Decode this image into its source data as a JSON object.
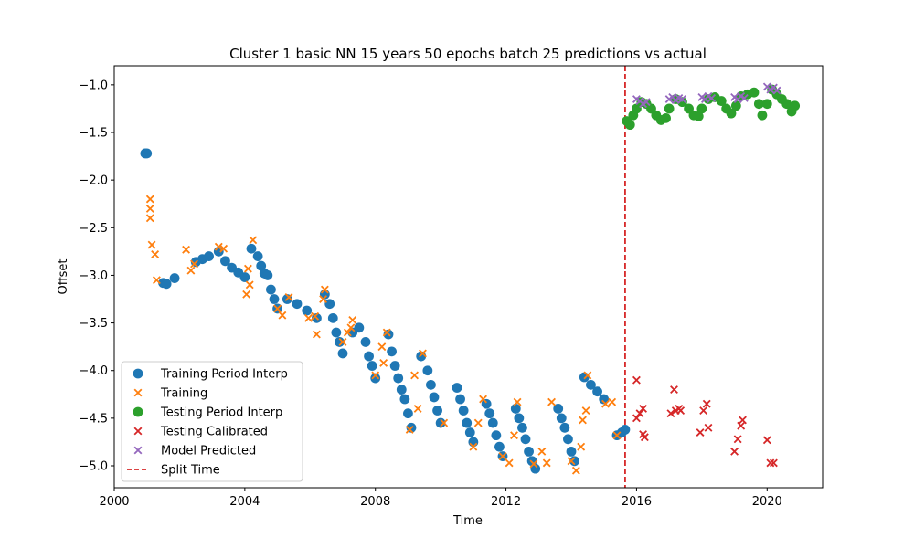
{
  "chart_data": {
    "type": "scatter",
    "title": "Cluster 1 basic NN 15 years 50 epochs batch 25 predictions vs actual",
    "xlabel": "Time",
    "ylabel": "Offset",
    "xlim": [
      2000.0,
      2021.7
    ],
    "ylim": [
      -5.23,
      -0.8
    ],
    "x_ticks": [
      2000,
      2004,
      2008,
      2012,
      2016,
      2020
    ],
    "x_tick_labels": [
      "2000",
      "2004",
      "2008",
      "2012",
      "2016",
      "2020"
    ],
    "y_ticks": [
      -1.0,
      -1.5,
      -2.0,
      -2.5,
      -3.0,
      -3.5,
      -4.0,
      -4.5,
      -5.0
    ],
    "y_tick_labels": [
      "−1.0",
      "−1.5",
      "−2.0",
      "−2.5",
      "−3.0",
      "−3.5",
      "−4.0",
      "−4.5",
      "−5.0"
    ],
    "grid": false,
    "legend_position": "lower-left",
    "split_time": {
      "name": "Split Time",
      "x": 2015.65,
      "color": "#d62728",
      "style": "dashed"
    },
    "series": [
      {
        "name": "Training Period Interp",
        "marker": "circle",
        "color": "#1f77b4",
        "points": [
          [
            2000.95,
            -1.72
          ],
          [
            2001.0,
            -1.72
          ],
          [
            2001.5,
            -3.08
          ],
          [
            2001.6,
            -3.09
          ],
          [
            2001.85,
            -3.03
          ],
          [
            2002.5,
            -2.86
          ],
          [
            2002.7,
            -2.83
          ],
          [
            2002.9,
            -2.8
          ],
          [
            2003.2,
            -2.75
          ],
          [
            2003.4,
            -2.85
          ],
          [
            2003.6,
            -2.92
          ],
          [
            2003.8,
            -2.97
          ],
          [
            2004.0,
            -3.02
          ],
          [
            2004.2,
            -2.72
          ],
          [
            2004.4,
            -2.8
          ],
          [
            2004.5,
            -2.9
          ],
          [
            2004.6,
            -2.98
          ],
          [
            2004.7,
            -3.0
          ],
          [
            2004.8,
            -3.15
          ],
          [
            2004.9,
            -3.25
          ],
          [
            2005.0,
            -3.35
          ],
          [
            2005.3,
            -3.25
          ],
          [
            2005.6,
            -3.3
          ],
          [
            2005.9,
            -3.37
          ],
          [
            2006.2,
            -3.45
          ],
          [
            2006.45,
            -3.2
          ],
          [
            2006.6,
            -3.3
          ],
          [
            2006.7,
            -3.45
          ],
          [
            2006.8,
            -3.6
          ],
          [
            2006.9,
            -3.7
          ],
          [
            2007.0,
            -3.82
          ],
          [
            2007.3,
            -3.6
          ],
          [
            2007.5,
            -3.55
          ],
          [
            2007.7,
            -3.7
          ],
          [
            2007.8,
            -3.85
          ],
          [
            2007.9,
            -3.95
          ],
          [
            2008.0,
            -4.08
          ],
          [
            2008.4,
            -3.62
          ],
          [
            2008.5,
            -3.8
          ],
          [
            2008.6,
            -3.95
          ],
          [
            2008.7,
            -4.08
          ],
          [
            2008.8,
            -4.2
          ],
          [
            2008.9,
            -4.3
          ],
          [
            2009.0,
            -4.45
          ],
          [
            2009.1,
            -4.6
          ],
          [
            2009.4,
            -3.85
          ],
          [
            2009.6,
            -4.0
          ],
          [
            2009.7,
            -4.15
          ],
          [
            2009.8,
            -4.28
          ],
          [
            2009.9,
            -4.42
          ],
          [
            2010.0,
            -4.55
          ],
          [
            2010.5,
            -4.18
          ],
          [
            2010.6,
            -4.3
          ],
          [
            2010.7,
            -4.42
          ],
          [
            2010.8,
            -4.55
          ],
          [
            2010.9,
            -4.65
          ],
          [
            2011.0,
            -4.75
          ],
          [
            2011.4,
            -4.35
          ],
          [
            2011.5,
            -4.45
          ],
          [
            2011.6,
            -4.55
          ],
          [
            2011.7,
            -4.68
          ],
          [
            2011.8,
            -4.8
          ],
          [
            2011.9,
            -4.9
          ],
          [
            2012.3,
            -4.4
          ],
          [
            2012.4,
            -4.5
          ],
          [
            2012.5,
            -4.6
          ],
          [
            2012.6,
            -4.72
          ],
          [
            2012.7,
            -4.85
          ],
          [
            2012.8,
            -4.95
          ],
          [
            2012.9,
            -5.03
          ],
          [
            2013.6,
            -4.4
          ],
          [
            2013.7,
            -4.5
          ],
          [
            2013.8,
            -4.6
          ],
          [
            2013.9,
            -4.72
          ],
          [
            2014.0,
            -4.85
          ],
          [
            2014.1,
            -4.95
          ],
          [
            2014.4,
            -4.07
          ],
          [
            2014.6,
            -4.15
          ],
          [
            2014.8,
            -4.22
          ],
          [
            2015.0,
            -4.3
          ],
          [
            2015.4,
            -4.68
          ],
          [
            2015.55,
            -4.65
          ],
          [
            2015.65,
            -4.62
          ]
        ]
      },
      {
        "name": "Training",
        "marker": "x",
        "color": "#ff7f0e",
        "points": [
          [
            2001.1,
            -2.2
          ],
          [
            2001.1,
            -2.3
          ],
          [
            2001.1,
            -2.4
          ],
          [
            2001.15,
            -2.68
          ],
          [
            2001.25,
            -2.78
          ],
          [
            2001.3,
            -3.05
          ],
          [
            2002.2,
            -2.73
          ],
          [
            2002.35,
            -2.95
          ],
          [
            2002.45,
            -2.88
          ],
          [
            2003.2,
            -2.7
          ],
          [
            2003.35,
            -2.72
          ],
          [
            2004.1,
            -2.93
          ],
          [
            2004.15,
            -3.1
          ],
          [
            2004.25,
            -2.63
          ],
          [
            2004.05,
            -3.2
          ],
          [
            2005.0,
            -3.35
          ],
          [
            2005.15,
            -3.42
          ],
          [
            2005.35,
            -3.23
          ],
          [
            2005.95,
            -3.45
          ],
          [
            2006.15,
            -3.43
          ],
          [
            2006.2,
            -3.62
          ],
          [
            2006.4,
            -3.25
          ],
          [
            2006.45,
            -3.15
          ],
          [
            2007.0,
            -3.7
          ],
          [
            2007.15,
            -3.6
          ],
          [
            2007.25,
            -3.55
          ],
          [
            2007.3,
            -3.47
          ],
          [
            2008.0,
            -4.05
          ],
          [
            2008.2,
            -3.75
          ],
          [
            2008.25,
            -3.92
          ],
          [
            2008.35,
            -3.6
          ],
          [
            2009.05,
            -4.62
          ],
          [
            2009.2,
            -4.05
          ],
          [
            2009.3,
            -4.4
          ],
          [
            2009.45,
            -3.82
          ],
          [
            2010.1,
            -4.55
          ],
          [
            2011.0,
            -4.8
          ],
          [
            2011.15,
            -4.55
          ],
          [
            2011.3,
            -4.3
          ],
          [
            2011.9,
            -4.9
          ],
          [
            2012.1,
            -4.97
          ],
          [
            2012.25,
            -4.68
          ],
          [
            2012.35,
            -4.33
          ],
          [
            2012.85,
            -4.98
          ],
          [
            2013.1,
            -4.85
          ],
          [
            2013.25,
            -4.97
          ],
          [
            2013.4,
            -4.33
          ],
          [
            2014.0,
            -4.95
          ],
          [
            2014.15,
            -5.05
          ],
          [
            2014.3,
            -4.8
          ],
          [
            2014.35,
            -4.52
          ],
          [
            2014.45,
            -4.42
          ],
          [
            2014.5,
            -4.05
          ],
          [
            2015.05,
            -4.35
          ],
          [
            2015.25,
            -4.33
          ],
          [
            2015.4,
            -4.68
          ]
        ]
      },
      {
        "name": "Testing Period Interp",
        "marker": "circle",
        "color": "#2ca02c",
        "points": [
          [
            2015.7,
            -1.38
          ],
          [
            2015.8,
            -1.42
          ],
          [
            2015.9,
            -1.32
          ],
          [
            2016.0,
            -1.25
          ],
          [
            2016.15,
            -1.18
          ],
          [
            2016.3,
            -1.2
          ],
          [
            2016.45,
            -1.25
          ],
          [
            2016.6,
            -1.32
          ],
          [
            2016.75,
            -1.37
          ],
          [
            2016.9,
            -1.35
          ],
          [
            2017.0,
            -1.25
          ],
          [
            2017.2,
            -1.15
          ],
          [
            2017.4,
            -1.18
          ],
          [
            2017.6,
            -1.25
          ],
          [
            2017.75,
            -1.32
          ],
          [
            2017.9,
            -1.33
          ],
          [
            2018.0,
            -1.25
          ],
          [
            2018.2,
            -1.15
          ],
          [
            2018.4,
            -1.13
          ],
          [
            2018.6,
            -1.17
          ],
          [
            2018.75,
            -1.25
          ],
          [
            2018.9,
            -1.3
          ],
          [
            2019.05,
            -1.22
          ],
          [
            2019.2,
            -1.12
          ],
          [
            2019.4,
            -1.1
          ],
          [
            2019.6,
            -1.08
          ],
          [
            2019.75,
            -1.2
          ],
          [
            2019.85,
            -1.32
          ],
          [
            2020.0,
            -1.2
          ],
          [
            2020.15,
            -1.05
          ],
          [
            2020.3,
            -1.1
          ],
          [
            2020.45,
            -1.15
          ],
          [
            2020.6,
            -1.2
          ],
          [
            2020.75,
            -1.28
          ],
          [
            2020.85,
            -1.22
          ]
        ]
      },
      {
        "name": "Testing Calibrated",
        "marker": "x",
        "color": "#d62728",
        "points": [
          [
            2016.0,
            -4.1
          ],
          [
            2016.0,
            -4.5
          ],
          [
            2016.1,
            -4.45
          ],
          [
            2016.2,
            -4.4
          ],
          [
            2016.2,
            -4.67
          ],
          [
            2016.25,
            -4.7
          ],
          [
            2017.05,
            -4.45
          ],
          [
            2017.15,
            -4.2
          ],
          [
            2017.2,
            -4.42
          ],
          [
            2017.3,
            -4.4
          ],
          [
            2017.35,
            -4.42
          ],
          [
            2017.95,
            -4.65
          ],
          [
            2018.05,
            -4.42
          ],
          [
            2018.15,
            -4.35
          ],
          [
            2018.2,
            -4.6
          ],
          [
            2019.0,
            -4.85
          ],
          [
            2019.1,
            -4.72
          ],
          [
            2019.2,
            -4.58
          ],
          [
            2019.25,
            -4.52
          ],
          [
            2020.0,
            -4.73
          ],
          [
            2020.1,
            -4.97
          ],
          [
            2020.2,
            -4.97
          ]
        ]
      },
      {
        "name": "Model Predicted",
        "marker": "x",
        "color": "#9467bd",
        "points": [
          [
            2016.0,
            -1.15
          ],
          [
            2016.1,
            -1.17
          ],
          [
            2016.2,
            -1.2
          ],
          [
            2016.3,
            -1.18
          ],
          [
            2017.0,
            -1.15
          ],
          [
            2017.1,
            -1.13
          ],
          [
            2017.2,
            -1.16
          ],
          [
            2017.3,
            -1.14
          ],
          [
            2017.4,
            -1.15
          ],
          [
            2018.0,
            -1.13
          ],
          [
            2018.1,
            -1.15
          ],
          [
            2018.2,
            -1.12
          ],
          [
            2018.3,
            -1.14
          ],
          [
            2019.0,
            -1.13
          ],
          [
            2019.1,
            -1.15
          ],
          [
            2019.2,
            -1.12
          ],
          [
            2019.3,
            -1.14
          ],
          [
            2020.0,
            -1.02
          ],
          [
            2020.1,
            -1.05
          ],
          [
            2020.2,
            -1.03
          ],
          [
            2020.3,
            -1.06
          ]
        ]
      }
    ]
  }
}
